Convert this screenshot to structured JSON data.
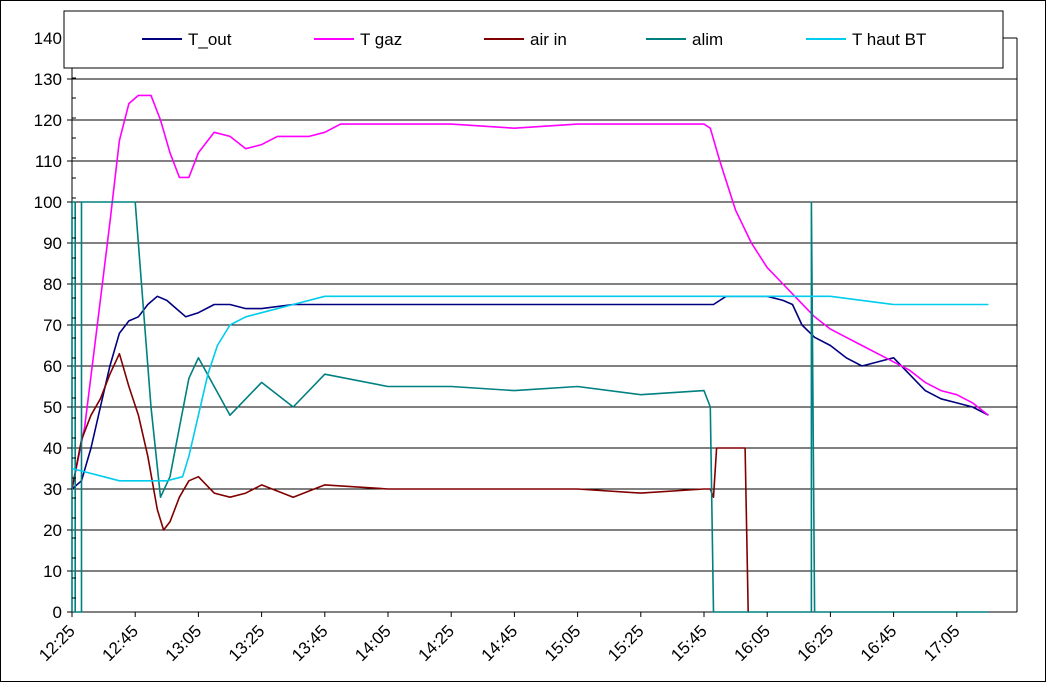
{
  "chart_data": {
    "type": "line",
    "title": "",
    "xlabel": "",
    "ylabel": "",
    "ylim": [
      0,
      140
    ],
    "yticks": [
      "0",
      "10",
      "20",
      "30",
      "40",
      "50",
      "60",
      "70",
      "80",
      "90",
      "100",
      "110",
      "120",
      "130",
      "140"
    ],
    "xticks": [
      "12:25",
      "12:45",
      "13:05",
      "13:25",
      "13:45",
      "14:05",
      "14:25",
      "14:45",
      "15:05",
      "15:25",
      "15:45",
      "16:05",
      "16:25",
      "16:45",
      "17:05"
    ],
    "grid": "horizontal",
    "legend": "top",
    "series": [
      {
        "name": "T_out",
        "color": "#000080",
        "points": [
          [
            "12:25",
            30
          ],
          [
            "12:28",
            32
          ],
          [
            "12:31",
            40
          ],
          [
            "12:34",
            50
          ],
          [
            "12:37",
            60
          ],
          [
            "12:40",
            68
          ],
          [
            "12:43",
            71
          ],
          [
            "12:46",
            72
          ],
          [
            "12:49",
            75
          ],
          [
            "12:52",
            77
          ],
          [
            "12:55",
            76
          ],
          [
            "12:58",
            74
          ],
          [
            "13:01",
            72
          ],
          [
            "13:05",
            73
          ],
          [
            "13:10",
            75
          ],
          [
            "13:15",
            75
          ],
          [
            "13:20",
            74
          ],
          [
            "13:25",
            74
          ],
          [
            "13:35",
            75
          ],
          [
            "13:45",
            75
          ],
          [
            "14:05",
            75
          ],
          [
            "14:25",
            75
          ],
          [
            "14:45",
            75
          ],
          [
            "15:05",
            75
          ],
          [
            "15:25",
            75
          ],
          [
            "15:45",
            75
          ],
          [
            "15:48",
            75
          ],
          [
            "15:52",
            77
          ],
          [
            "15:58",
            77
          ],
          [
            "16:05",
            77
          ],
          [
            "16:10",
            76
          ],
          [
            "16:13",
            75
          ],
          [
            "16:16",
            70
          ],
          [
            "16:20",
            67
          ],
          [
            "16:25",
            65
          ],
          [
            "16:30",
            62
          ],
          [
            "16:35",
            60
          ],
          [
            "16:40",
            61
          ],
          [
            "16:45",
            62
          ],
          [
            "16:50",
            58
          ],
          [
            "16:55",
            54
          ],
          [
            "17:00",
            52
          ],
          [
            "17:05",
            51
          ],
          [
            "17:10",
            50
          ],
          [
            "17:15",
            48
          ]
        ]
      },
      {
        "name": "T gaz",
        "color": "#FF00FF",
        "points": [
          [
            "12:25",
            30
          ],
          [
            "12:29",
            45
          ],
          [
            "12:33",
            70
          ],
          [
            "12:37",
            95
          ],
          [
            "12:40",
            115
          ],
          [
            "12:43",
            124
          ],
          [
            "12:46",
            126
          ],
          [
            "12:50",
            126
          ],
          [
            "12:53",
            120
          ],
          [
            "12:56",
            112
          ],
          [
            "12:59",
            106
          ],
          [
            "13:02",
            106
          ],
          [
            "13:05",
            112
          ],
          [
            "13:10",
            117
          ],
          [
            "13:15",
            116
          ],
          [
            "13:20",
            113
          ],
          [
            "13:25",
            114
          ],
          [
            "13:30",
            116
          ],
          [
            "13:40",
            116
          ],
          [
            "13:45",
            117
          ],
          [
            "13:50",
            119
          ],
          [
            "14:05",
            119
          ],
          [
            "14:25",
            119
          ],
          [
            "14:45",
            118
          ],
          [
            "15:05",
            119
          ],
          [
            "15:25",
            119
          ],
          [
            "15:45",
            119
          ],
          [
            "15:47",
            118
          ],
          [
            "15:50",
            110
          ],
          [
            "15:55",
            98
          ],
          [
            "16:00",
            90
          ],
          [
            "16:05",
            84
          ],
          [
            "16:10",
            80
          ],
          [
            "16:15",
            76
          ],
          [
            "16:20",
            72
          ],
          [
            "16:25",
            69
          ],
          [
            "16:30",
            67
          ],
          [
            "16:35",
            65
          ],
          [
            "16:40",
            63
          ],
          [
            "16:45",
            61
          ],
          [
            "16:50",
            59
          ],
          [
            "16:55",
            56
          ],
          [
            "17:00",
            54
          ],
          [
            "17:05",
            53
          ],
          [
            "17:10",
            51
          ],
          [
            "17:15",
            48
          ]
        ]
      },
      {
        "name": "air in",
        "color": "#800000",
        "points": [
          [
            "12:25",
            30
          ],
          [
            "12:28",
            42
          ],
          [
            "12:31",
            48
          ],
          [
            "12:34",
            52
          ],
          [
            "12:37",
            58
          ],
          [
            "12:40",
            63
          ],
          [
            "12:43",
            55
          ],
          [
            "12:46",
            48
          ],
          [
            "12:49",
            38
          ],
          [
            "12:52",
            25
          ],
          [
            "12:54",
            20
          ],
          [
            "12:56",
            22
          ],
          [
            "12:59",
            28
          ],
          [
            "13:02",
            32
          ],
          [
            "13:05",
            33
          ],
          [
            "13:10",
            29
          ],
          [
            "13:15",
            28
          ],
          [
            "13:20",
            29
          ],
          [
            "13:25",
            31
          ],
          [
            "13:35",
            28
          ],
          [
            "13:45",
            31
          ],
          [
            "14:05",
            30
          ],
          [
            "14:25",
            30
          ],
          [
            "14:45",
            30
          ],
          [
            "15:05",
            30
          ],
          [
            "15:25",
            29
          ],
          [
            "15:45",
            30
          ],
          [
            "15:47",
            30
          ],
          [
            "15:48",
            28
          ],
          [
            "15:49",
            40
          ],
          [
            "15:58",
            40
          ],
          [
            "15:59",
            0
          ]
        ]
      },
      {
        "name": "alim",
        "color": "#008080",
        "points": [
          [
            "12:25",
            0
          ],
          [
            "12:25",
            100
          ],
          [
            "12:26",
            100
          ],
          [
            "12:26",
            0
          ],
          [
            "12:28",
            0
          ],
          [
            "12:28",
            100
          ],
          [
            "12:45",
            100
          ],
          [
            "12:47",
            80
          ],
          [
            "12:50",
            50
          ],
          [
            "12:53",
            28
          ],
          [
            "12:56",
            33
          ],
          [
            "12:59",
            45
          ],
          [
            "13:02",
            57
          ],
          [
            "13:05",
            62
          ],
          [
            "13:10",
            55
          ],
          [
            "13:15",
            48
          ],
          [
            "13:20",
            52
          ],
          [
            "13:25",
            56
          ],
          [
            "13:35",
            50
          ],
          [
            "13:45",
            58
          ],
          [
            "14:05",
            55
          ],
          [
            "14:25",
            55
          ],
          [
            "14:45",
            54
          ],
          [
            "15:05",
            55
          ],
          [
            "15:25",
            53
          ],
          [
            "15:45",
            54
          ],
          [
            "15:47",
            50
          ],
          [
            "15:48",
            0
          ],
          [
            "16:19",
            0
          ],
          [
            "16:19",
            100
          ],
          [
            "16:20",
            0
          ],
          [
            "17:15",
            0
          ]
        ]
      },
      {
        "name": "T haut BT",
        "color": "#00CCEE",
        "points": [
          [
            "12:25",
            35
          ],
          [
            "12:30",
            34
          ],
          [
            "12:35",
            33
          ],
          [
            "12:40",
            32
          ],
          [
            "12:50",
            32
          ],
          [
            "12:55",
            32
          ],
          [
            "13:00",
            33
          ],
          [
            "13:02",
            38
          ],
          [
            "13:05",
            48
          ],
          [
            "13:08",
            58
          ],
          [
            "13:11",
            65
          ],
          [
            "13:15",
            70
          ],
          [
            "13:20",
            72
          ],
          [
            "13:25",
            73
          ],
          [
            "13:35",
            75
          ],
          [
            "13:45",
            77
          ],
          [
            "14:05",
            77
          ],
          [
            "14:25",
            77
          ],
          [
            "14:45",
            77
          ],
          [
            "15:05",
            77
          ],
          [
            "15:25",
            77
          ],
          [
            "15:45",
            77
          ],
          [
            "16:05",
            77
          ],
          [
            "16:25",
            77
          ],
          [
            "16:35",
            76
          ],
          [
            "16:45",
            75
          ],
          [
            "17:05",
            75
          ],
          [
            "17:15",
            75
          ]
        ]
      }
    ]
  }
}
